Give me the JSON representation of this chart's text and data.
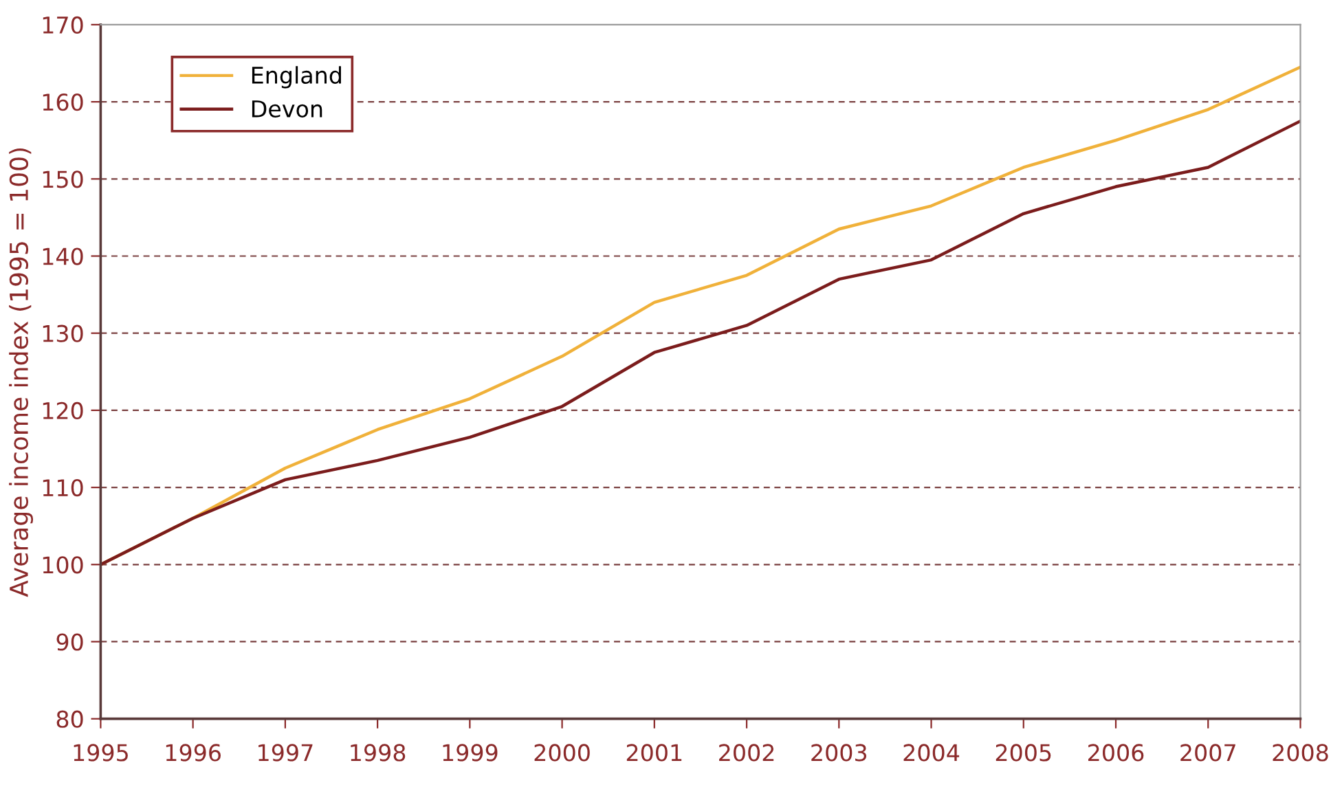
{
  "chart_data": {
    "type": "line",
    "ylabel": "Average income index (1995 = 100)",
    "x": [
      1995,
      1996,
      1997,
      1998,
      1999,
      2000,
      2001,
      2002,
      2003,
      2004,
      2005,
      2006,
      2007,
      2008
    ],
    "series": [
      {
        "name": "England",
        "color": "#f0b13a",
        "values": [
          100,
          106,
          112.5,
          117.5,
          121.5,
          127,
          134,
          137.5,
          143.5,
          146.5,
          151.5,
          155,
          159,
          164.5
        ]
      },
      {
        "name": "Devon",
        "color": "#7b1c1c",
        "values": [
          100,
          106,
          111,
          113.5,
          116.5,
          120.5,
          127.5,
          131,
          137,
          139.5,
          145.5,
          149,
          151.5,
          157.5
        ]
      }
    ],
    "xlim": [
      1995,
      2008
    ],
    "xticks": [
      1995,
      1996,
      1997,
      1998,
      1999,
      2000,
      2001,
      2002,
      2003,
      2004,
      2005,
      2006,
      2007,
      2008
    ],
    "ylim": [
      80,
      170
    ],
    "yticks": [
      80,
      90,
      100,
      110,
      120,
      130,
      140,
      150,
      160,
      170
    ],
    "grid": "y",
    "legend": "top left",
    "marker": "none",
    "line_style": "solid"
  }
}
